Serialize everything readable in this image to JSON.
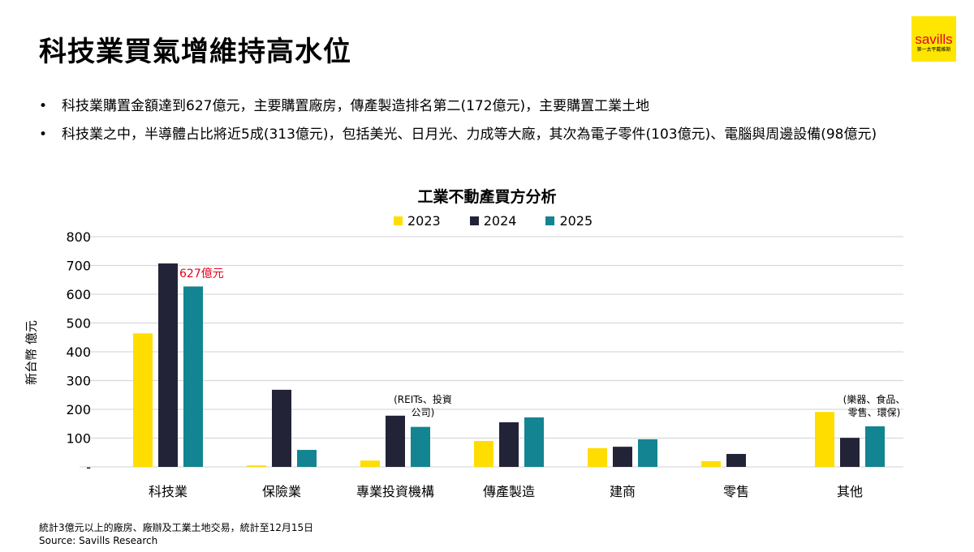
{
  "title": "科技業買氣增維持高水位",
  "logo": {
    "brand": "savills",
    "subtitle": "第一太平戴維斯",
    "color": "#FFE600"
  },
  "bullets": [
    "科技業購置金額達到627億元，主要購置廠房，傳產製造排名第二(172億元)，主要購置工業土地",
    "科技業之中，半導體占比將近5成(313億元)，包括美光、日月光、力成等大廠，其次為電子零件(103億元)、電腦與周邊設備(98億元)"
  ],
  "chart_data": {
    "type": "bar",
    "title": "工業不動產買方分析",
    "ylabel": "新台幣 億元",
    "xlabel": "",
    "ylim": [
      0,
      800
    ],
    "yticks": [
      "-",
      "100",
      "200",
      "300",
      "400",
      "500",
      "600",
      "700",
      "800"
    ],
    "grid": true,
    "legend_position": "top",
    "categories": [
      "科技業",
      "保險業",
      "專業投資機構",
      "傳產製造",
      "建商",
      "零售",
      "其他"
    ],
    "series": [
      {
        "name": "2023",
        "color": "#FFDD00",
        "values": [
          464,
          5,
          22,
          90,
          65,
          20,
          191
        ]
      },
      {
        "name": "2024",
        "color": "#232338",
        "values": [
          707,
          268,
          178,
          155,
          70,
          45,
          101
        ]
      },
      {
        "name": "2025",
        "color": "#138491",
        "values": [
          627,
          59,
          139,
          172,
          96,
          0,
          141
        ]
      }
    ],
    "annotations": [
      {
        "text": "627億元",
        "color": "#E8001C"
      },
      {
        "text": "(REITs、投資公司)",
        "lines": [
          "(REITs、投資",
          "公司)"
        ]
      },
      {
        "text": "(樂器、食品、零售、環保)",
        "lines": [
          "(樂器、食品、",
          "零售、環保)"
        ]
      }
    ]
  },
  "footnotes": [
    "統計3億元以上的廠房、廠辦及工業土地交易，統計至12月15日",
    "Source: Savills Research"
  ]
}
